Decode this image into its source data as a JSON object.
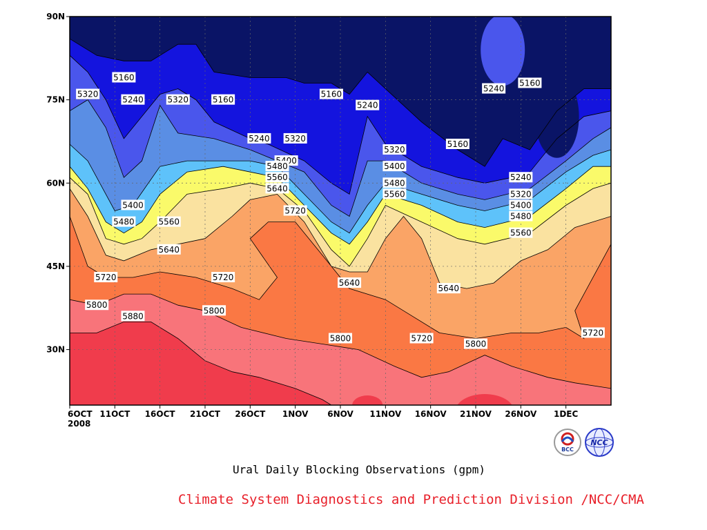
{
  "chart_data": {
    "type": "contour",
    "title": "Ural Daily Blocking Observations (gpm)",
    "credit": "Climate System Diagnostics and Prediction Division /NCC/CMA",
    "x_tick_labels": [
      "6OCT",
      "11OCT",
      "16OCT",
      "21OCT",
      "26OCT",
      "1NOV",
      "6NOV",
      "11NOV",
      "16NOV",
      "21NOV",
      "26NOV",
      "1DEC"
    ],
    "x_year_label": "2008",
    "x_range": [
      "2008-10-06",
      "2008-12-05"
    ],
    "y_tick_labels": [
      "90N",
      "75N",
      "60N",
      "45N",
      "30N"
    ],
    "y_ticks": [
      90,
      75,
      60,
      45,
      30
    ],
    "y_range": [
      20,
      90
    ],
    "grid": true,
    "contour_levels": [
      5160,
      5240,
      5320,
      5400,
      5480,
      5560,
      5640,
      5720,
      5800,
      5880
    ],
    "level_colors": [
      "#0a1466",
      "#1414de",
      "#4a56ec",
      "#5a8ee4",
      "#5ec2fa",
      "#fafa6a",
      "#fae2a0",
      "#faa466",
      "#fa7844",
      "#f8747a",
      "#f03c4c"
    ],
    "contours": [
      {
        "level": 5160,
        "label": "5160",
        "points": [
          [
            "2008-10-06",
            86
          ],
          [
            "2008-10-09",
            83
          ],
          [
            "2008-10-12",
            82
          ],
          [
            "2008-10-15",
            82
          ],
          [
            "2008-10-18",
            85
          ],
          [
            "2008-10-20",
            85
          ],
          [
            "2008-10-22",
            80
          ],
          [
            "2008-10-26",
            79
          ],
          [
            "2008-10-30",
            79
          ],
          [
            "2008-11-01",
            78
          ],
          [
            "2008-11-04",
            78
          ],
          [
            "2008-11-06",
            76
          ],
          [
            "2008-11-08",
            80
          ],
          [
            "2008-11-10",
            77
          ],
          [
            "2008-11-14",
            71
          ],
          [
            "2008-11-18",
            66
          ],
          [
            "2008-11-21",
            63
          ],
          [
            "2008-11-23",
            68
          ],
          [
            "2008-11-26",
            66
          ],
          [
            "2008-11-29",
            73
          ],
          [
            "2008-12-02",
            77
          ],
          [
            "2008-12-05",
            77
          ]
        ]
      },
      {
        "level": 5240,
        "label": "5240",
        "points": [
          [
            "2008-10-06",
            83
          ],
          [
            "2008-10-08",
            80
          ],
          [
            "2008-10-10",
            75
          ],
          [
            "2008-10-12",
            68
          ],
          [
            "2008-10-14",
            72
          ],
          [
            "2008-10-16",
            76
          ],
          [
            "2008-10-18",
            77
          ],
          [
            "2008-10-20",
            75
          ],
          [
            "2008-10-22",
            71
          ],
          [
            "2008-10-26",
            68
          ],
          [
            "2008-10-28",
            67
          ],
          [
            "2008-11-01",
            64
          ],
          [
            "2008-11-04",
            60
          ],
          [
            "2008-11-06",
            58
          ],
          [
            "2008-11-08",
            72
          ],
          [
            "2008-11-10",
            67
          ],
          [
            "2008-11-14",
            63
          ],
          [
            "2008-11-18",
            61
          ],
          [
            "2008-11-21",
            60
          ],
          [
            "2008-11-24",
            61
          ],
          [
            "2008-11-26",
            62
          ],
          [
            "2008-11-29",
            68
          ],
          [
            "2008-12-02",
            72
          ],
          [
            "2008-12-05",
            73
          ]
        ]
      },
      {
        "level": 5320,
        "label": "5320",
        "points": [
          [
            "2008-10-06",
            73
          ],
          [
            "2008-10-08",
            75
          ],
          [
            "2008-10-10",
            70
          ],
          [
            "2008-10-12",
            61
          ],
          [
            "2008-10-14",
            64
          ],
          [
            "2008-10-16",
            74
          ],
          [
            "2008-10-18",
            69
          ],
          [
            "2008-10-22",
            68
          ],
          [
            "2008-10-26",
            66
          ],
          [
            "2008-11-01",
            62
          ],
          [
            "2008-11-04",
            56
          ],
          [
            "2008-11-06",
            54
          ],
          [
            "2008-11-08",
            64
          ],
          [
            "2008-11-10",
            64
          ],
          [
            "2008-11-14",
            60
          ],
          [
            "2008-11-18",
            58
          ],
          [
            "2008-11-21",
            57
          ],
          [
            "2008-11-26",
            59
          ],
          [
            "2008-11-30",
            64
          ],
          [
            "2008-12-03",
            68
          ],
          [
            "2008-12-05",
            70
          ]
        ]
      },
      {
        "level": 5400,
        "label": "5400",
        "points": [
          [
            "2008-10-06",
            67
          ],
          [
            "2008-10-08",
            64
          ],
          [
            "2008-10-10",
            58
          ],
          [
            "2008-10-11",
            55
          ],
          [
            "2008-10-13",
            56
          ],
          [
            "2008-10-16",
            63
          ],
          [
            "2008-10-19",
            64
          ],
          [
            "2008-10-23",
            64
          ],
          [
            "2008-10-26",
            64
          ],
          [
            "2008-10-29",
            63
          ],
          [
            "2008-11-01",
            58
          ],
          [
            "2008-11-04",
            53
          ],
          [
            "2008-11-06",
            51
          ],
          [
            "2008-11-08",
            56
          ],
          [
            "2008-11-10",
            60
          ],
          [
            "2008-11-14",
            58
          ],
          [
            "2008-11-18",
            56
          ],
          [
            "2008-11-21",
            55
          ],
          [
            "2008-11-26",
            57
          ],
          [
            "2008-11-30",
            62
          ],
          [
            "2008-12-03",
            65
          ],
          [
            "2008-12-05",
            66
          ]
        ]
      },
      {
        "level": 5480,
        "label": "5480",
        "points": [
          [
            "2008-10-06",
            63
          ],
          [
            "2008-10-08",
            59
          ],
          [
            "2008-10-10",
            53
          ],
          [
            "2008-10-12",
            51
          ],
          [
            "2008-10-14",
            53
          ],
          [
            "2008-10-16",
            58
          ],
          [
            "2008-10-19",
            62
          ],
          [
            "2008-10-23",
            63
          ],
          [
            "2008-10-26",
            62
          ],
          [
            "2008-10-29",
            61
          ],
          [
            "2008-11-01",
            56
          ],
          [
            "2008-11-04",
            51
          ],
          [
            "2008-11-06",
            49
          ],
          [
            "2008-11-08",
            53
          ],
          [
            "2008-11-10",
            58
          ],
          [
            "2008-11-14",
            56
          ],
          [
            "2008-11-18",
            53
          ],
          [
            "2008-11-21",
            52
          ],
          [
            "2008-11-26",
            54
          ],
          [
            "2008-11-30",
            59
          ],
          [
            "2008-12-03",
            63
          ],
          [
            "2008-12-05",
            63
          ]
        ]
      },
      {
        "level": 5560,
        "label": "5560",
        "points": [
          [
            "2008-10-06",
            61
          ],
          [
            "2008-10-08",
            58
          ],
          [
            "2008-10-10",
            50
          ],
          [
            "2008-10-12",
            49
          ],
          [
            "2008-10-14",
            50
          ],
          [
            "2008-10-16",
            53
          ],
          [
            "2008-10-19",
            58
          ],
          [
            "2008-10-23",
            59
          ],
          [
            "2008-10-26",
            60
          ],
          [
            "2008-10-29",
            59
          ],
          [
            "2008-11-01",
            55
          ],
          [
            "2008-11-04",
            48
          ],
          [
            "2008-11-06",
            45
          ],
          [
            "2008-11-08",
            50
          ],
          [
            "2008-11-10",
            56
          ],
          [
            "2008-11-14",
            53
          ],
          [
            "2008-11-18",
            50
          ],
          [
            "2008-11-21",
            49
          ],
          [
            "2008-11-26",
            51
          ],
          [
            "2008-11-30",
            56
          ],
          [
            "2008-12-03",
            59
          ],
          [
            "2008-12-05",
            60
          ]
        ]
      },
      {
        "level": 5640,
        "label": "5640",
        "points": [
          [
            "2008-10-06",
            59
          ],
          [
            "2008-10-08",
            54
          ],
          [
            "2008-10-10",
            47
          ],
          [
            "2008-10-12",
            46
          ],
          [
            "2008-10-15",
            48
          ],
          [
            "2008-10-18",
            49
          ],
          [
            "2008-10-21",
            50
          ],
          [
            "2008-10-24",
            54
          ],
          [
            "2008-10-26",
            57
          ],
          [
            "2008-10-29",
            58
          ],
          [
            "2008-11-01",
            53
          ],
          [
            "2008-11-04",
            45
          ],
          [
            "2008-11-06",
            44
          ],
          [
            "2008-11-08",
            44
          ],
          [
            "2008-11-10",
            50
          ],
          [
            "2008-11-12",
            54
          ],
          [
            "2008-11-14",
            50
          ],
          [
            "2008-11-16",
            42
          ],
          [
            "2008-11-19",
            41
          ],
          [
            "2008-11-22",
            42
          ],
          [
            "2008-11-25",
            46
          ],
          [
            "2008-11-28",
            48
          ],
          [
            "2008-12-01",
            52
          ],
          [
            "2008-12-05",
            54
          ]
        ]
      },
      {
        "level": 5720,
        "label": "5720",
        "points": [
          [
            "2008-10-06",
            54
          ],
          [
            "2008-10-08",
            45
          ],
          [
            "2008-10-10",
            43
          ],
          [
            "2008-10-13",
            43
          ],
          [
            "2008-10-16",
            44
          ],
          [
            "2008-10-20",
            43
          ],
          [
            "2008-10-24",
            41
          ],
          [
            "2008-10-27",
            39
          ],
          [
            "2008-10-29",
            43
          ],
          [
            "2008-10-26",
            50
          ],
          [
            "2008-10-28",
            53
          ],
          [
            "2008-10-31",
            53
          ],
          [
            "2008-11-03",
            47
          ],
          [
            "2008-11-06",
            41
          ],
          [
            "2008-11-10",
            39
          ],
          [
            "2008-11-13",
            36
          ],
          [
            "2008-11-16",
            33
          ],
          [
            "2008-11-20",
            32
          ],
          [
            "2008-11-24",
            33
          ],
          [
            "2008-11-27",
            33
          ],
          [
            "2008-11-30",
            34
          ],
          [
            "2008-12-02",
            32
          ],
          [
            "2008-12-01",
            37
          ],
          [
            "2008-12-02",
            40
          ],
          [
            "2008-12-04",
            46
          ],
          [
            "2008-12-05",
            49
          ]
        ]
      },
      {
        "level": 5800,
        "label": "5800",
        "points": [
          [
            "2008-10-06",
            39
          ],
          [
            "2008-10-09",
            38
          ],
          [
            "2008-10-12",
            40
          ],
          [
            "2008-10-15",
            40
          ],
          [
            "2008-10-18",
            38
          ],
          [
            "2008-10-21",
            37
          ],
          [
            "2008-10-25",
            34
          ],
          [
            "2008-10-30",
            32
          ],
          [
            "2008-11-03",
            31
          ],
          [
            "2008-11-07",
            30
          ],
          [
            "2008-11-11",
            27
          ],
          [
            "2008-11-14",
            25
          ],
          [
            "2008-11-17",
            26
          ],
          [
            "2008-11-21",
            29
          ],
          [
            "2008-11-24",
            27
          ],
          [
            "2008-11-28",
            25
          ],
          [
            "2008-12-01",
            24
          ],
          [
            "2008-12-05",
            23
          ]
        ]
      },
      {
        "level": 5880,
        "label": "5880",
        "points": [
          [
            "2008-10-06",
            33
          ],
          [
            "2008-10-09",
            33
          ],
          [
            "2008-10-12",
            35
          ],
          [
            "2008-10-15",
            35
          ],
          [
            "2008-10-18",
            32
          ],
          [
            "2008-10-21",
            28
          ],
          [
            "2008-10-24",
            26
          ],
          [
            "2008-10-27",
            25
          ],
          [
            "2008-10-31",
            23
          ],
          [
            "2008-11-03",
            21
          ],
          [
            "2008-11-04",
            20
          ]
        ]
      }
    ],
    "contour_labels": [
      {
        "text": "5160",
        "x": "2008-10-12",
        "y": 79
      },
      {
        "text": "5160",
        "x": "2008-10-23",
        "y": 75
      },
      {
        "text": "5160",
        "x": "2008-11-04",
        "y": 76
      },
      {
        "text": "5160",
        "x": "2008-11-18",
        "y": 67
      },
      {
        "text": "5160",
        "x": "2008-11-26",
        "y": 78
      },
      {
        "text": "5240",
        "x": "2008-10-13",
        "y": 75
      },
      {
        "text": "5240",
        "x": "2008-10-27",
        "y": 68
      },
      {
        "text": "5240",
        "x": "2008-11-08",
        "y": 74
      },
      {
        "text": "5240",
        "x": "2008-11-22",
        "y": 77
      },
      {
        "text": "5240",
        "x": "2008-11-25",
        "y": 61
      },
      {
        "text": "5320",
        "x": "2008-10-08",
        "y": 76
      },
      {
        "text": "5320",
        "x": "2008-10-18",
        "y": 75
      },
      {
        "text": "5320",
        "x": "2008-10-31",
        "y": 68
      },
      {
        "text": "5320",
        "x": "2008-11-11",
        "y": 66
      },
      {
        "text": "5320",
        "x": "2008-11-25",
        "y": 58
      },
      {
        "text": "5400",
        "x": "2008-10-30",
        "y": 64
      },
      {
        "text": "5400",
        "x": "2008-10-13",
        "y": 56
      },
      {
        "text": "5400",
        "x": "2008-11-11",
        "y": 63
      },
      {
        "text": "5400",
        "x": "2008-11-25",
        "y": 56
      },
      {
        "text": "5480",
        "x": "2008-10-29",
        "y": 63
      },
      {
        "text": "5480",
        "x": "2008-10-12",
        "y": 53
      },
      {
        "text": "5480",
        "x": "2008-11-11",
        "y": 60
      },
      {
        "text": "5480",
        "x": "2008-11-25",
        "y": 54
      },
      {
        "text": "5560",
        "x": "2008-10-29",
        "y": 61
      },
      {
        "text": "5560",
        "x": "2008-10-17",
        "y": 53
      },
      {
        "text": "5560",
        "x": "2008-11-11",
        "y": 58
      },
      {
        "text": "5560",
        "x": "2008-11-25",
        "y": 51
      },
      {
        "text": "5640",
        "x": "2008-10-29",
        "y": 59
      },
      {
        "text": "5640",
        "x": "2008-10-17",
        "y": 48
      },
      {
        "text": "5640",
        "x": "2008-11-06",
        "y": 42
      },
      {
        "text": "5640",
        "x": "2008-11-17",
        "y": 41
      },
      {
        "text": "5720",
        "x": "2008-10-31",
        "y": 55
      },
      {
        "text": "5720",
        "x": "2008-10-10",
        "y": 43
      },
      {
        "text": "5720",
        "x": "2008-10-23",
        "y": 43
      },
      {
        "text": "5720",
        "x": "2008-11-14",
        "y": 32
      },
      {
        "text": "5720",
        "x": "2008-12-03",
        "y": 33
      },
      {
        "text": "5800",
        "x": "2008-10-09",
        "y": 38
      },
      {
        "text": "5800",
        "x": "2008-10-22",
        "y": 37
      },
      {
        "text": "5800",
        "x": "2008-11-05",
        "y": 32
      },
      {
        "text": "5800",
        "x": "2008-11-20",
        "y": 31
      },
      {
        "text": "5880",
        "x": "2008-10-13",
        "y": 36
      }
    ]
  },
  "logos": [
    {
      "name": "bcc-logo",
      "text": "BCC"
    },
    {
      "name": "ncc-logo",
      "text": "NCC"
    }
  ]
}
